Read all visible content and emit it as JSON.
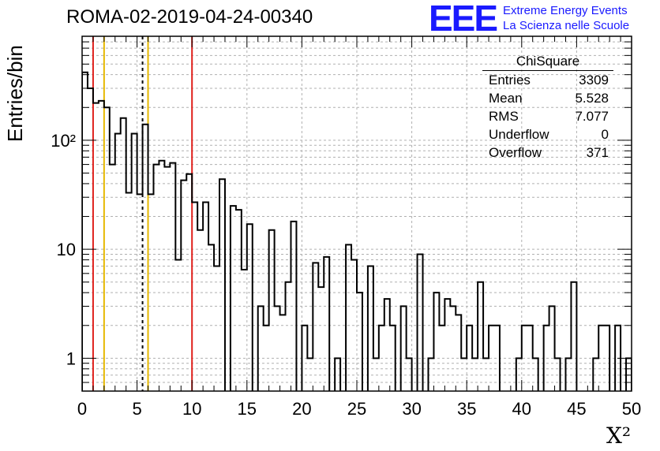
{
  "header": {
    "run_title": "ROMA-02-2019-04-24-00340"
  },
  "logo": {
    "mark": "EEE",
    "line1": "Extreme Energy Events",
    "line2": "La Scienza nelle Scuole"
  },
  "stats": {
    "title": "ChiSquare",
    "rows": [
      {
        "label": "Entries",
        "value": "3309"
      },
      {
        "label": "Mean",
        "value": "5.528"
      },
      {
        "label": "RMS",
        "value": "7.077"
      },
      {
        "label": "Underflow",
        "value": "0"
      },
      {
        "label": "Overflow",
        "value": "371"
      }
    ]
  },
  "chart_data": {
    "type": "bar",
    "histogram": true,
    "title": "ROMA-02-2019-04-24-00340",
    "xlabel": "X²",
    "ylabel": "Entries/bin",
    "xlim": [
      0,
      50
    ],
    "ylim": [
      0.5,
      900
    ],
    "yscale": "log",
    "grid": true,
    "bin_width": 0.5,
    "bin_edges_start": 0,
    "x_ticks": [
      0,
      5,
      10,
      15,
      20,
      25,
      30,
      35,
      40,
      45,
      50
    ],
    "y_ticks": [
      {
        "value": 1,
        "label": "1"
      },
      {
        "value": 10,
        "label": "10"
      },
      {
        "value": 100,
        "label": "10²"
      }
    ],
    "values": [
      420,
      300,
      220,
      230,
      200,
      60,
      115,
      160,
      33,
      115,
      32,
      140,
      32,
      60,
      65,
      57,
      62,
      8,
      43,
      49,
      27,
      15,
      27,
      11,
      7,
      44,
      0,
      25,
      23,
      6.5,
      17,
      0,
      3,
      2,
      15,
      3,
      2.5,
      5,
      18,
      0,
      2,
      1,
      7.5,
      4.5,
      8.5,
      0,
      1,
      0,
      11,
      8,
      4,
      0,
      7,
      1,
      2,
      3.5,
      2,
      0,
      3,
      1,
      0,
      9,
      0,
      1,
      4,
      2,
      3.5,
      3,
      2.5,
      1,
      2,
      1,
      5,
      1,
      2,
      2,
      0,
      0,
      0,
      1,
      2,
      2,
      1,
      0,
      2,
      3,
      1,
      0,
      1,
      5,
      0,
      0,
      0,
      1,
      2,
      2,
      0,
      2,
      0,
      1
    ],
    "vertical_lines": [
      {
        "x": 1,
        "color": "#e0201c",
        "style": "solid"
      },
      {
        "x": 2,
        "color": "#e6b800",
        "style": "solid"
      },
      {
        "x": 5.5,
        "color": "#000000",
        "style": "dashed"
      },
      {
        "x": 6,
        "color": "#e6b800",
        "style": "solid"
      },
      {
        "x": 10,
        "color": "#e0201c",
        "style": "solid"
      }
    ]
  }
}
